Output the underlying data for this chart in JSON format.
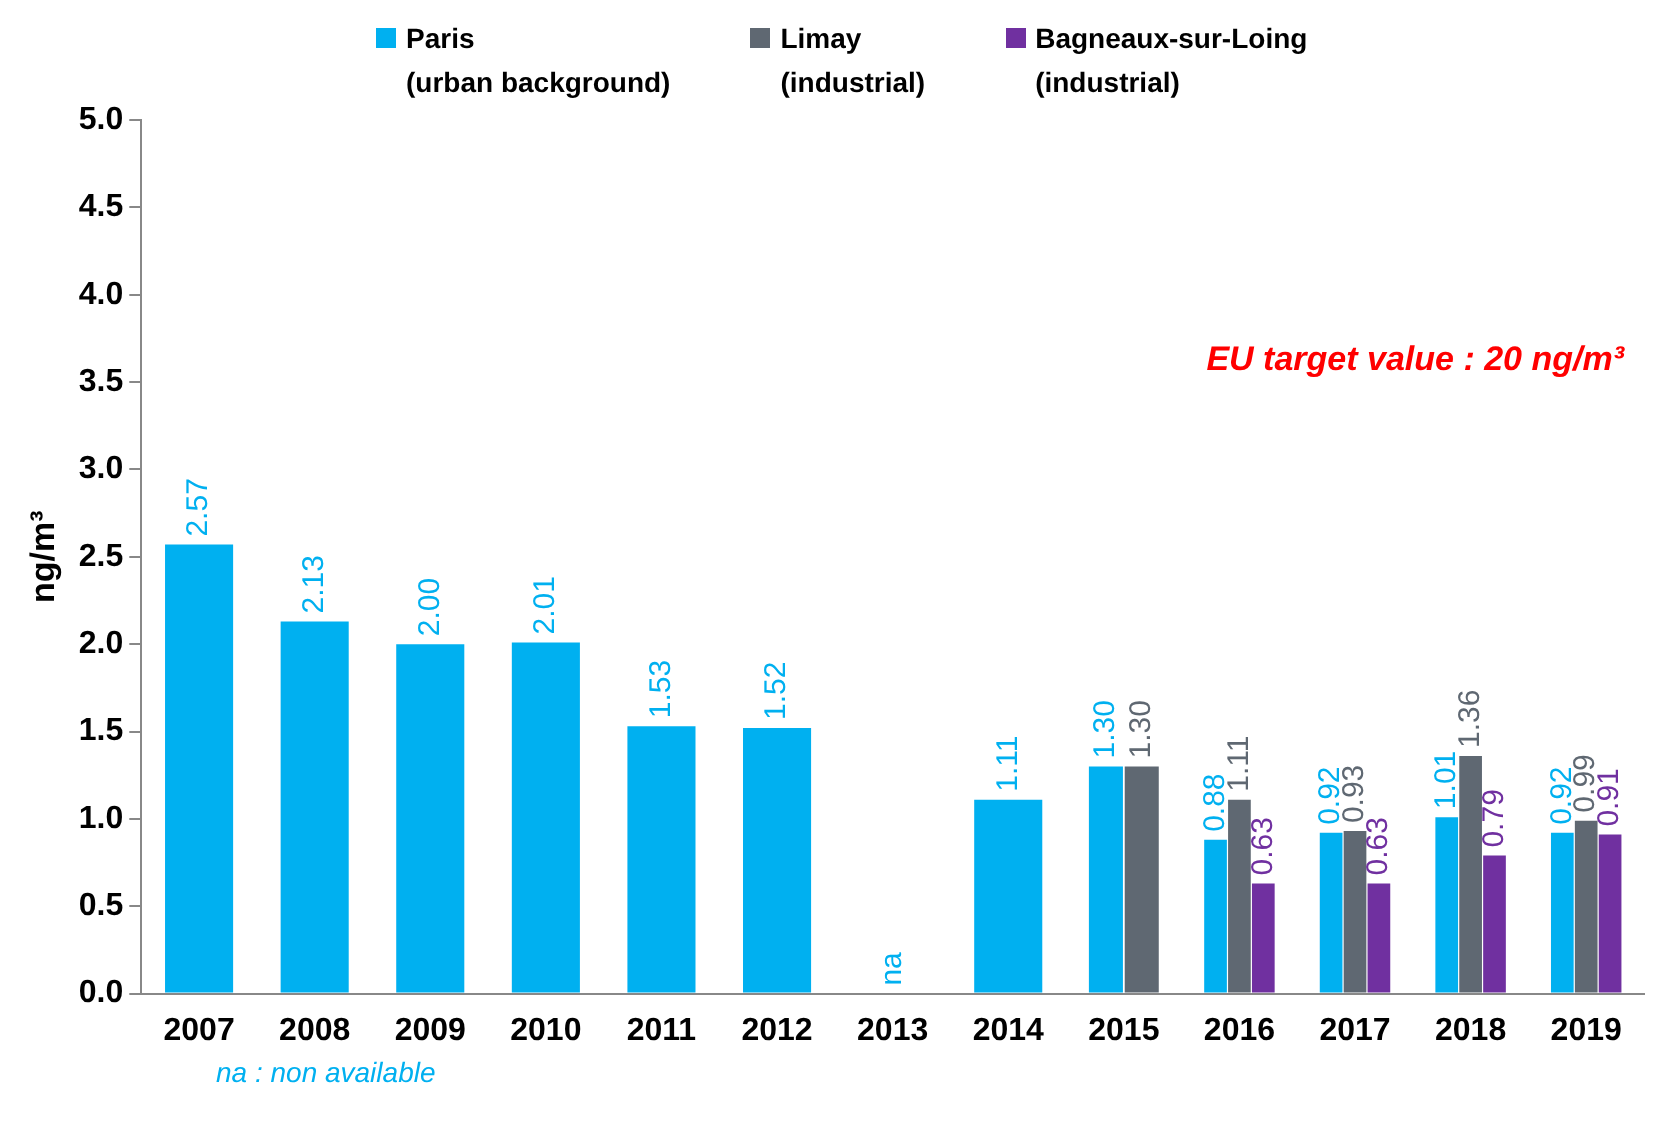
{
  "chart_data": {
    "type": "bar",
    "ylabel": "ng/m³",
    "categories": [
      "2007",
      "2008",
      "2009",
      "2010",
      "2011",
      "2012",
      "2013",
      "2014",
      "2015",
      "2016",
      "2017",
      "2018",
      "2019"
    ],
    "series": [
      {
        "name": "Paris (urban background)",
        "color": "#00b0f0",
        "values": [
          2.57,
          2.13,
          2.0,
          2.01,
          1.53,
          1.52,
          null,
          1.11,
          1.3,
          0.88,
          0.92,
          1.01,
          0.92
        ],
        "value_labels": [
          "2.57",
          "2.13",
          "2.00",
          "2.01",
          "1.53",
          "1.52",
          "na",
          "1.11",
          "1.30",
          "0.88",
          "0.92",
          "1.01",
          "0.92"
        ]
      },
      {
        "name": "Limay (industrial)",
        "color": "#5f6872",
        "values": [
          null,
          null,
          null,
          null,
          null,
          null,
          null,
          null,
          1.3,
          1.11,
          0.93,
          1.36,
          0.99
        ],
        "value_labels": [
          null,
          null,
          null,
          null,
          null,
          null,
          null,
          null,
          "1.30",
          "1.11",
          "0.93",
          "1.36",
          "0.99"
        ]
      },
      {
        "name": "Bagneaux-sur-Loing (industrial)",
        "color": "#7030a0",
        "values": [
          null,
          null,
          null,
          null,
          null,
          null,
          null,
          null,
          null,
          0.63,
          0.63,
          0.79,
          0.91
        ],
        "value_labels": [
          null,
          null,
          null,
          null,
          null,
          null,
          null,
          null,
          null,
          "0.63",
          "0.63",
          "0.79",
          "0.91"
        ]
      }
    ],
    "ylim": [
      0,
      5
    ],
    "yticks": [
      {
        "value": 0,
        "label": "0.0"
      },
      {
        "value": 0.5,
        "label": "0.5"
      },
      {
        "value": 1,
        "label": "1.0"
      },
      {
        "value": 1.5,
        "label": "1.5"
      },
      {
        "value": 2,
        "label": "2.0"
      },
      {
        "value": 2.5,
        "label": "2.5"
      },
      {
        "value": 3,
        "label": "3.0"
      },
      {
        "value": 3.5,
        "label": "3.5"
      },
      {
        "value": 4,
        "label": "4.0"
      },
      {
        "value": 4.5,
        "label": "4.5"
      },
      {
        "value": 5,
        "label": "5.0"
      }
    ],
    "grid": false,
    "legend": "top",
    "annotations": [
      "EU target value : 20 ng/m³",
      "na : non available"
    ]
  }
}
